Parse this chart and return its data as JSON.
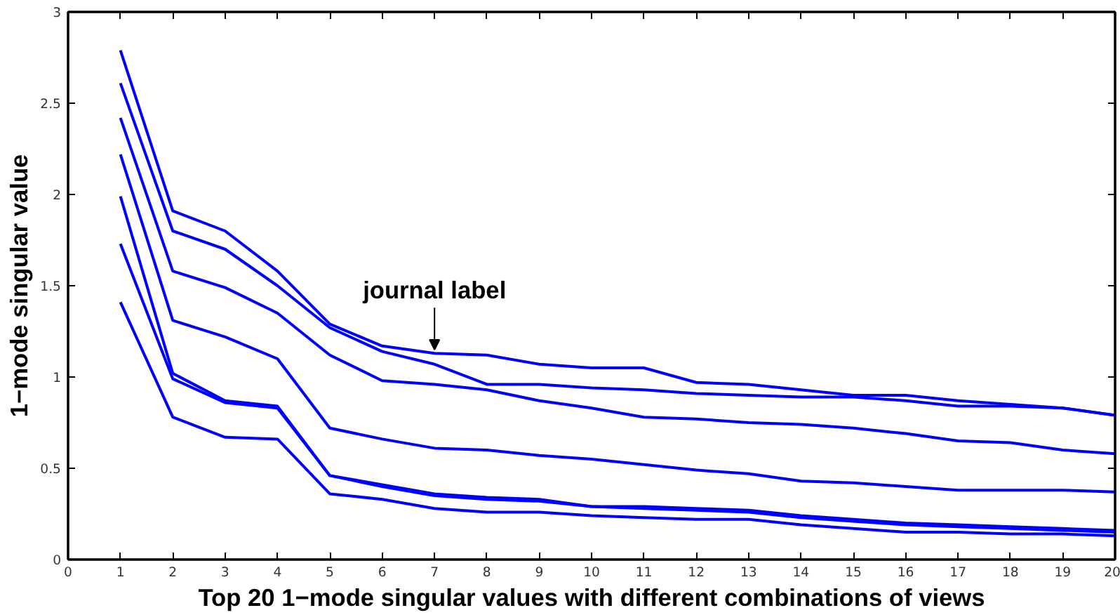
{
  "chart_data": {
    "type": "line",
    "xlabel": "Top 20 1−mode singular values with different combinations of views",
    "ylabel": "1−mode singular value",
    "x": [
      1,
      2,
      3,
      4,
      5,
      6,
      7,
      8,
      9,
      10,
      11,
      12,
      13,
      14,
      15,
      16,
      17,
      18,
      19,
      20
    ],
    "series": [
      {
        "color": "#0000ff",
        "values": [
          2.79,
          1.91,
          1.8,
          1.58,
          1.29,
          1.17,
          1.13,
          1.12,
          1.07,
          1.05,
          1.05,
          0.97,
          0.96,
          0.93,
          0.9,
          0.9,
          0.87,
          0.85,
          0.83,
          0.79
        ]
      },
      {
        "color": "#0000ff",
        "values": [
          2.61,
          1.8,
          1.7,
          1.5,
          1.27,
          1.14,
          1.07,
          0.96,
          0.96,
          0.94,
          0.93,
          0.91,
          0.9,
          0.89,
          0.89,
          0.87,
          0.84,
          0.84,
          0.83,
          0.79
        ]
      },
      {
        "color": "#0000ff",
        "values": [
          2.42,
          1.58,
          1.49,
          1.35,
          1.12,
          0.98,
          0.96,
          0.93,
          0.87,
          0.83,
          0.78,
          0.77,
          0.75,
          0.74,
          0.72,
          0.69,
          0.65,
          0.64,
          0.6,
          0.58
        ]
      },
      {
        "color": "#0000ff",
        "values": [
          2.22,
          1.31,
          1.22,
          1.1,
          0.72,
          0.66,
          0.61,
          0.6,
          0.57,
          0.55,
          0.52,
          0.49,
          0.47,
          0.43,
          0.42,
          0.4,
          0.38,
          0.38,
          0.38,
          0.37
        ]
      },
      {
        "color": "#0000ff",
        "values": [
          1.99,
          1.02,
          0.87,
          0.84,
          0.46,
          0.41,
          0.36,
          0.34,
          0.33,
          0.29,
          0.29,
          0.28,
          0.27,
          0.24,
          0.22,
          0.2,
          0.19,
          0.18,
          0.17,
          0.16
        ]
      },
      {
        "color": "#0000ff",
        "values": [
          1.73,
          0.99,
          0.86,
          0.83,
          0.46,
          0.4,
          0.35,
          0.33,
          0.32,
          0.29,
          0.28,
          0.27,
          0.26,
          0.23,
          0.21,
          0.19,
          0.18,
          0.17,
          0.16,
          0.15
        ]
      },
      {
        "color": "#0000ff",
        "values": [
          1.41,
          0.78,
          0.67,
          0.66,
          0.36,
          0.33,
          0.28,
          0.26,
          0.26,
          0.24,
          0.23,
          0.22,
          0.22,
          0.19,
          0.17,
          0.15,
          0.15,
          0.14,
          0.14,
          0.13
        ]
      }
    ],
    "annotations": [
      {
        "text": "journal label",
        "x": 7,
        "y": 1.13
      }
    ],
    "xlim": [
      0,
      20
    ],
    "ylim": [
      0,
      3
    ],
    "xticks": [
      0,
      1,
      2,
      3,
      4,
      5,
      6,
      7,
      8,
      9,
      10,
      11,
      12,
      13,
      14,
      15,
      16,
      17,
      18,
      19,
      20
    ],
    "yticks": [
      0,
      0.5,
      1,
      1.5,
      2,
      2.5,
      3
    ],
    "grid": false,
    "marker": "none",
    "line_style": "solid"
  }
}
